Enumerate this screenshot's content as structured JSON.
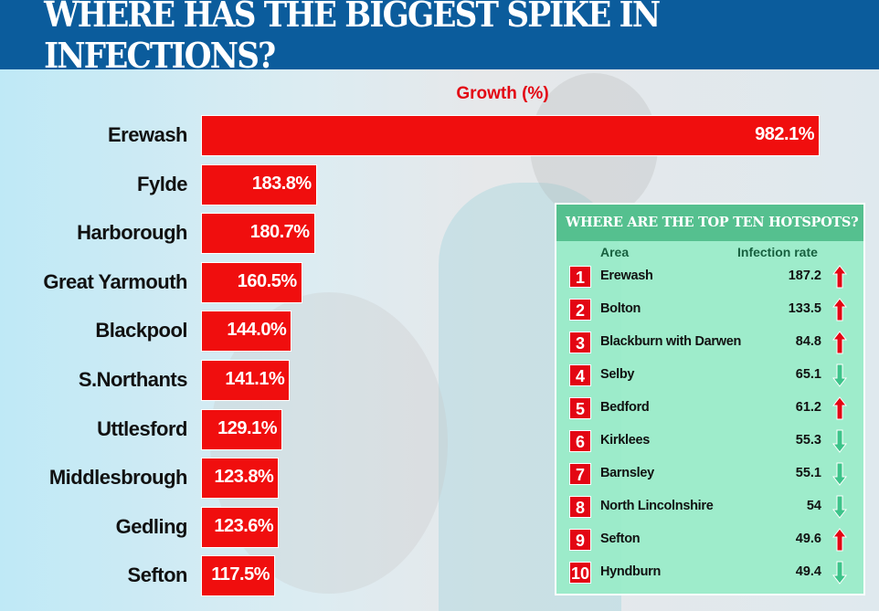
{
  "title": "WHERE HAS THE BIGGEST SPIKE IN INFECTIONS?",
  "chart_data": {
    "type": "bar",
    "orientation": "horizontal",
    "xlabel": "Growth (%)",
    "categories": [
      "Erewash",
      "Fylde",
      "Harborough",
      "Great Yarmouth",
      "Blackpool",
      "S.Northants",
      "Uttlesford",
      "Middlesbrough",
      "Gedling",
      "Sefton"
    ],
    "values": [
      982.1,
      183.8,
      180.7,
      160.5,
      144.0,
      141.1,
      129.1,
      123.8,
      123.6,
      117.5
    ],
    "data_labels": [
      "982.1%",
      "183.8%",
      "180.7%",
      "160.5%",
      "144.0%",
      "141.1%",
      "129.1%",
      "123.8%",
      "123.6%",
      "117.5%"
    ],
    "bar_color": "#f00e0e"
  },
  "table": {
    "title": "WHERE ARE THE TOP TEN HOTSPOTS?",
    "headers": {
      "area": "Area",
      "rate": "Infection rate"
    },
    "rows": [
      {
        "rank": "1",
        "area": "Erewash",
        "rate": "187.2",
        "trend": "up"
      },
      {
        "rank": "2",
        "area": "Bolton",
        "rate": "133.5",
        "trend": "up"
      },
      {
        "rank": "3",
        "area": "Blackburn with Darwen",
        "rate": "84.8",
        "trend": "up"
      },
      {
        "rank": "4",
        "area": "Selby",
        "rate": "65.1",
        "trend": "down"
      },
      {
        "rank": "5",
        "area": "Bedford",
        "rate": "61.2",
        "trend": "up"
      },
      {
        "rank": "6",
        "area": "Kirklees",
        "rate": "55.3",
        "trend": "down"
      },
      {
        "rank": "7",
        "area": "Barnsley",
        "rate": "55.1",
        "trend": "down"
      },
      {
        "rank": "8",
        "area": "North Lincolnshire",
        "rate": "54",
        "trend": "down"
      },
      {
        "rank": "9",
        "area": "Sefton",
        "rate": "49.6",
        "trend": "up"
      },
      {
        "rank": "10",
        "area": "Hyndburn",
        "rate": "49.4",
        "trend": "down"
      }
    ],
    "colors": {
      "up": "#e30613",
      "down": "#3cc48a"
    }
  }
}
